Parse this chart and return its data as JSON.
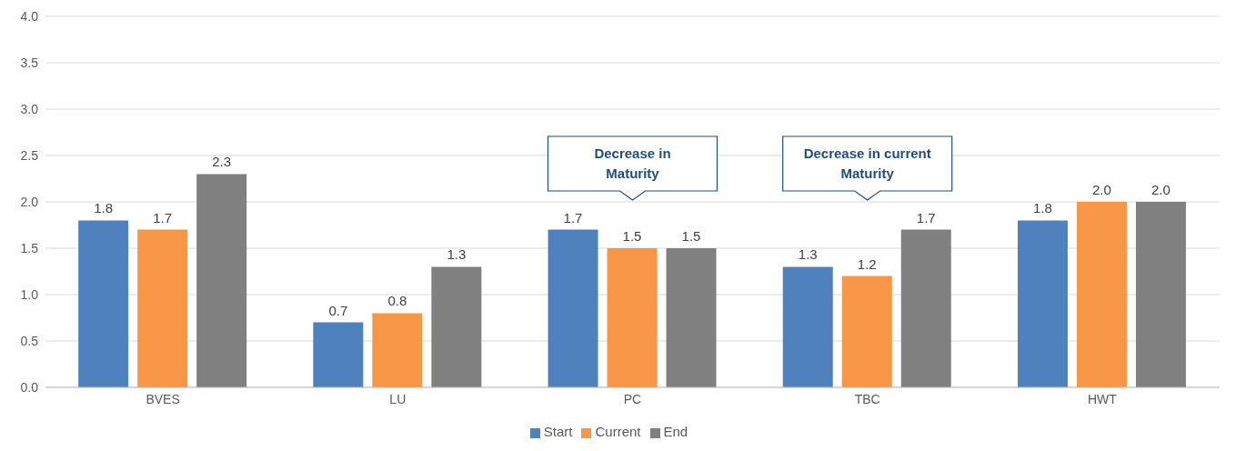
{
  "chart_data": {
    "type": "bar",
    "categories": [
      "BVES",
      "LU",
      "PC",
      "TBC",
      "HWT"
    ],
    "series": [
      {
        "name": "Start",
        "color": "#4f81bd",
        "values": [
          1.8,
          0.7,
          1.7,
          1.3,
          1.8
        ],
        "value_labels": [
          "1.8",
          "0.7",
          "1.7",
          "1.3",
          "1.8"
        ]
      },
      {
        "name": "Current",
        "color": "#f79646",
        "values": [
          1.7,
          0.8,
          1.5,
          1.2,
          2.0
        ],
        "value_labels": [
          "1.7",
          "0.8",
          "1.5",
          "1.2",
          "2.0"
        ]
      },
      {
        "name": "End",
        "color": "#808080",
        "values": [
          2.3,
          1.3,
          1.5,
          1.7,
          2.0
        ],
        "value_labels": [
          "2.3",
          "1.3",
          "1.5",
          "1.7",
          "2.0"
        ]
      }
    ],
    "ylim": [
      0,
      4
    ],
    "yticks": [
      "0.0",
      "0.5",
      "1.0",
      "1.5",
      "2.0",
      "2.5",
      "3.0",
      "3.5",
      "4.0"
    ],
    "grid": "y",
    "legend": "bottom",
    "annotations": [
      "Decrease in Maturity",
      "Decrease in current Maturity"
    ]
  }
}
